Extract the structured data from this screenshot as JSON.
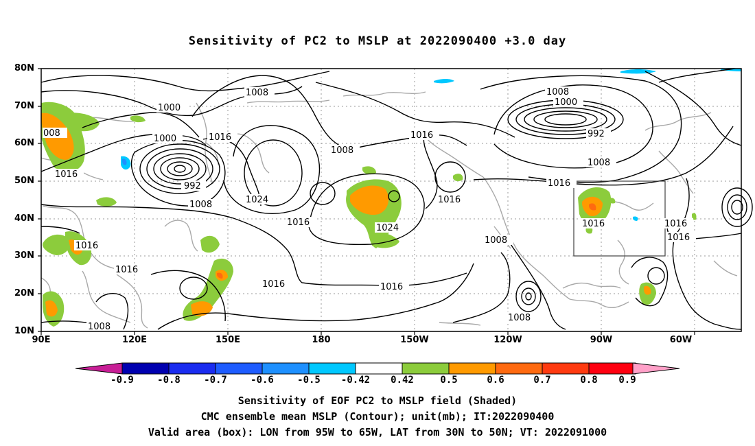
{
  "title": "Sensitivity of PC2 to MSLP at 2022090400 +3.0 day",
  "lat_ticks": [
    "80N",
    "70N",
    "60N",
    "50N",
    "40N",
    "30N",
    "20N",
    "10N"
  ],
  "lon_ticks": [
    "90E",
    "120E",
    "150E",
    "180",
    "150W",
    "120W",
    "90W",
    "60W"
  ],
  "colorbar": {
    "labels": [
      "-0.9",
      "-0.8",
      "-0.7",
      "-0.6",
      "-0.5",
      "-0.42",
      "0.42",
      "0.5",
      "0.6",
      "0.7",
      "0.8",
      "0.9"
    ],
    "colors": [
      "#0000b0",
      "#1a2cf0",
      "#1e5cff",
      "#1e90ff",
      "#00c8ff",
      "#ffffff",
      "#8ccc3c",
      "#ff9a00",
      "#ff6a10",
      "#ff3a10",
      "#ff0010"
    ],
    "left_tip": "#c81e96",
    "right_tip": "#ffa0c8"
  },
  "contour_labels": {
    "c1008_a": "1008",
    "c1000_a": "1000",
    "c1000_b": "1000",
    "c992_a": "992",
    "c1008_b": "1008",
    "c1016_a": "1016",
    "c1024_a": "1024",
    "c1008_c": "1008",
    "c1016_b": "1016",
    "c1016_c": "1016",
    "c1024_b": "1024",
    "c1016_d": "1016",
    "c1016_e": "1016",
    "c1016_f": "1016",
    "c1008_d": "1008",
    "c1016_g": "1016",
    "c1016_h": "1016",
    "c1008_e": "1008",
    "c1000_c": "1000",
    "c992_b": "992",
    "c1008_f": "1008",
    "c1016_i": "1016",
    "c1016_j": "1016",
    "c1016_k": "1016",
    "c1016_l": "1016",
    "c1008_g": "1008",
    "c008": "008"
  },
  "valid_area": {
    "lon_from": "95W",
    "lon_to": "65W",
    "lat_from": "30N",
    "lat_to": "50N"
  },
  "captions": {
    "line1": "Sensitivity of EOF PC2 to MSLP field (Shaded)",
    "line2": "CMC ensemble mean MSLP (Contour); unit(mb); IT:2022090400",
    "line3": "Valid area (box): LON from 95W to 65W, LAT from 30N to 50N; VT: 2022091000"
  }
}
